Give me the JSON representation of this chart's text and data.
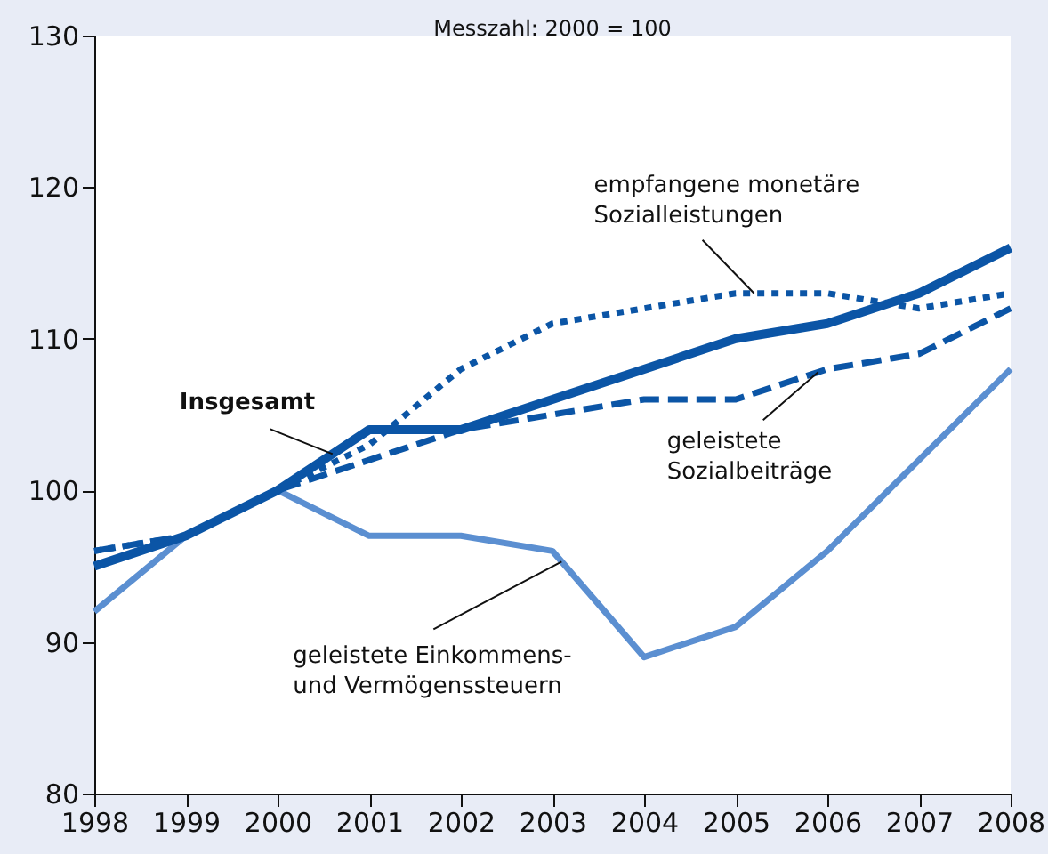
{
  "chart_data": {
    "type": "line",
    "title": "Messzahl: 2000 = 100",
    "x": [
      1998,
      1999,
      2000,
      2001,
      2002,
      2003,
      2004,
      2005,
      2006,
      2007,
      2008
    ],
    "xlim": [
      1998,
      2008
    ],
    "xticks": [
      1998,
      1999,
      2000,
      2001,
      2002,
      2003,
      2004,
      2005,
      2006,
      2007,
      2008
    ],
    "ylim": [
      80,
      130
    ],
    "yticks": [
      80,
      90,
      100,
      110,
      120,
      130
    ],
    "grid": false,
    "series": [
      {
        "color": "#5b8fd1",
        "line_style": "solid",
        "values": [
          92,
          97,
          100,
          97,
          97,
          96,
          89,
          91,
          96,
          102,
          108
        ]
      },
      {
        "color": "#0b55a6",
        "line_style": "dashed",
        "values": [
          96,
          97,
          100,
          102,
          104,
          105,
          106,
          106,
          108,
          109,
          112
        ]
      },
      {
        "color": "#0b55a6",
        "line_style": "dotted",
        "values": [
          96,
          97,
          100,
          103,
          108,
          111,
          112,
          113,
          113,
          112,
          113
        ]
      },
      {
        "color": "#0b55a6",
        "line_style": "solid",
        "values": [
          95,
          97,
          100,
          104,
          104,
          106,
          108,
          110,
          111,
          113,
          116
        ]
      }
    ],
    "annotations": [
      {
        "text": "Insgesamt",
        "x": 2000.6,
        "y": 102.4
      },
      {
        "text": "empfangene monetäre\nSozialleistungen",
        "x": 2005.2,
        "y": 113
      },
      {
        "text": "geleistete\nSozialbeiträge",
        "x": 2005.9,
        "y": 107.8
      },
      {
        "text": "geleistete Einkommens-\nund Vermögenssteuern",
        "x": 2003.1,
        "y": 95.3
      }
    ]
  }
}
